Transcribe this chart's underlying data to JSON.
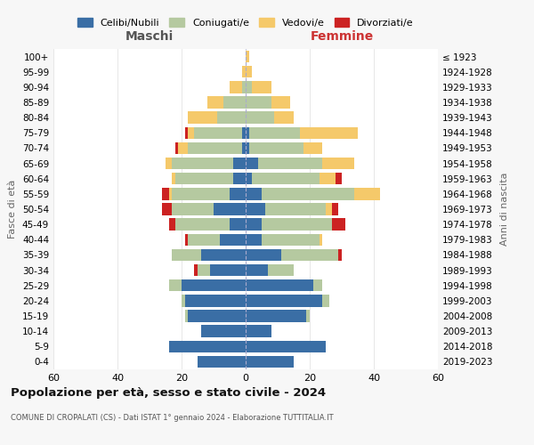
{
  "age_groups": [
    "0-4",
    "5-9",
    "10-14",
    "15-19",
    "20-24",
    "25-29",
    "30-34",
    "35-39",
    "40-44",
    "45-49",
    "50-54",
    "55-59",
    "60-64",
    "65-69",
    "70-74",
    "75-79",
    "80-84",
    "85-89",
    "90-94",
    "95-99",
    "100+"
  ],
  "birth_years": [
    "2019-2023",
    "2014-2018",
    "2009-2013",
    "2004-2008",
    "1999-2003",
    "1994-1998",
    "1989-1993",
    "1984-1988",
    "1979-1983",
    "1974-1978",
    "1969-1973",
    "1964-1968",
    "1959-1963",
    "1954-1958",
    "1949-1953",
    "1944-1948",
    "1939-1943",
    "1934-1938",
    "1929-1933",
    "1924-1928",
    "≤ 1923"
  ],
  "colors": {
    "celibi": "#3a6ea5",
    "coniugati": "#b5c9a0",
    "vedovi": "#f5c96a",
    "divorziati": "#cc2222"
  },
  "male": {
    "celibi": [
      15,
      24,
      14,
      18,
      19,
      20,
      11,
      14,
      8,
      5,
      10,
      5,
      4,
      4,
      1,
      1,
      0,
      0,
      0,
      0,
      0
    ],
    "coniugati": [
      0,
      0,
      0,
      1,
      1,
      4,
      4,
      9,
      10,
      17,
      13,
      18,
      18,
      19,
      17,
      15,
      9,
      7,
      1,
      0,
      0
    ],
    "vedovi": [
      0,
      0,
      0,
      0,
      0,
      0,
      0,
      0,
      0,
      0,
      0,
      1,
      1,
      2,
      3,
      2,
      9,
      5,
      4,
      1,
      0
    ],
    "divorziati": [
      0,
      0,
      0,
      0,
      0,
      0,
      1,
      0,
      1,
      2,
      3,
      2,
      0,
      0,
      1,
      1,
      0,
      0,
      0,
      0,
      0
    ]
  },
  "female": {
    "celibi": [
      15,
      25,
      8,
      19,
      24,
      21,
      7,
      11,
      5,
      5,
      6,
      5,
      2,
      4,
      1,
      1,
      0,
      0,
      0,
      0,
      0
    ],
    "coniugati": [
      0,
      0,
      0,
      1,
      2,
      3,
      8,
      18,
      18,
      22,
      19,
      29,
      21,
      20,
      17,
      16,
      9,
      8,
      2,
      0,
      0
    ],
    "vedovi": [
      0,
      0,
      0,
      0,
      0,
      0,
      0,
      0,
      1,
      0,
      2,
      8,
      5,
      10,
      6,
      18,
      6,
      6,
      6,
      2,
      1
    ],
    "divorziati": [
      0,
      0,
      0,
      0,
      0,
      0,
      0,
      1,
      0,
      4,
      2,
      0,
      2,
      0,
      0,
      0,
      0,
      0,
      0,
      0,
      0
    ]
  },
  "xlim": 60,
  "xtick_step": 20,
  "title": "Popolazione per età, sesso e stato civile - 2024",
  "subtitle": "COMUNE DI CROPALATI (CS) - Dati ISTAT 1° gennaio 2024 - Elaborazione TUTTITALIA.IT",
  "xlabel_left": "Maschi",
  "xlabel_right": "Femmine",
  "ylabel_left": "Fasce di età",
  "ylabel_right": "Anni di nascita",
  "legend_labels": [
    "Celibi/Nubili",
    "Coniugati/e",
    "Vedovi/e",
    "Divorziati/e"
  ],
  "bg_color": "#f7f7f7",
  "plot_bg": "#ffffff",
  "grid_color": "#dddddd",
  "bar_height": 0.78
}
